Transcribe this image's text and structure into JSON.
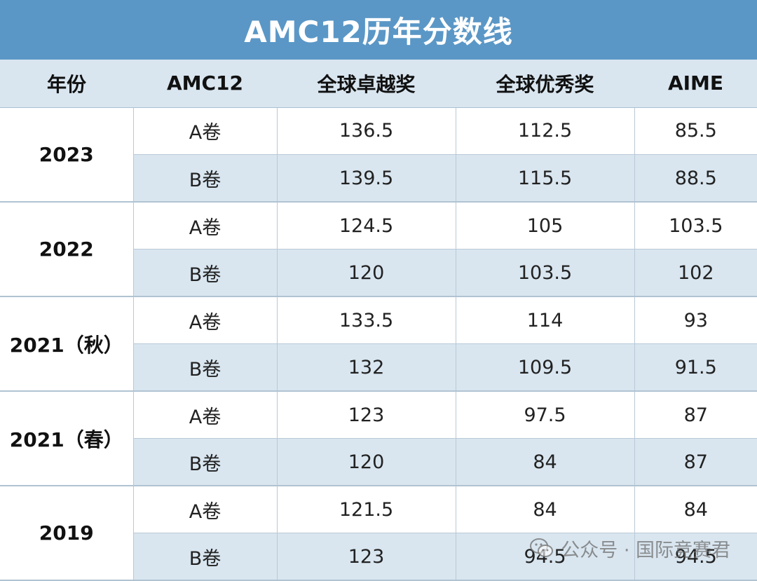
{
  "title": "AMC12历年分数线",
  "headers": [
    "年份",
    "AMC12",
    "全球卓越奖",
    "全球优秀奖",
    "AIME"
  ],
  "groups": [
    {
      "year": "2023",
      "rows": [
        {
          "paper": "A卷",
          "distinction": "136.5",
          "honor": "112.5",
          "aime": "85.5"
        },
        {
          "paper": "B卷",
          "distinction": "139.5",
          "honor": "115.5",
          "aime": "88.5"
        }
      ]
    },
    {
      "year": "2022",
      "rows": [
        {
          "paper": "A卷",
          "distinction": "124.5",
          "honor": "105",
          "aime": "103.5"
        },
        {
          "paper": "B卷",
          "distinction": "120",
          "honor": "103.5",
          "aime": "102"
        }
      ]
    },
    {
      "year": "2021（秋）",
      "rows": [
        {
          "paper": "A卷",
          "distinction": "133.5",
          "honor": "114",
          "aime": "93"
        },
        {
          "paper": "B卷",
          "distinction": "132",
          "honor": "109.5",
          "aime": "91.5"
        }
      ]
    },
    {
      "year": "2021（春）",
      "rows": [
        {
          "paper": "A卷",
          "distinction": "123",
          "honor": "97.5",
          "aime": "87"
        },
        {
          "paper": "B卷",
          "distinction": "120",
          "honor": "84",
          "aime": "87"
        }
      ]
    },
    {
      "year": "2019",
      "rows": [
        {
          "paper": "A卷",
          "distinction": "121.5",
          "honor": "84",
          "aime": "84"
        },
        {
          "paper": "B卷",
          "distinction": "123",
          "honor": "94.5",
          "aime": "94.5"
        }
      ]
    }
  ],
  "watermark": {
    "text": "公众号 · 国际竞赛君",
    "icon": "wechat-icon"
  }
}
